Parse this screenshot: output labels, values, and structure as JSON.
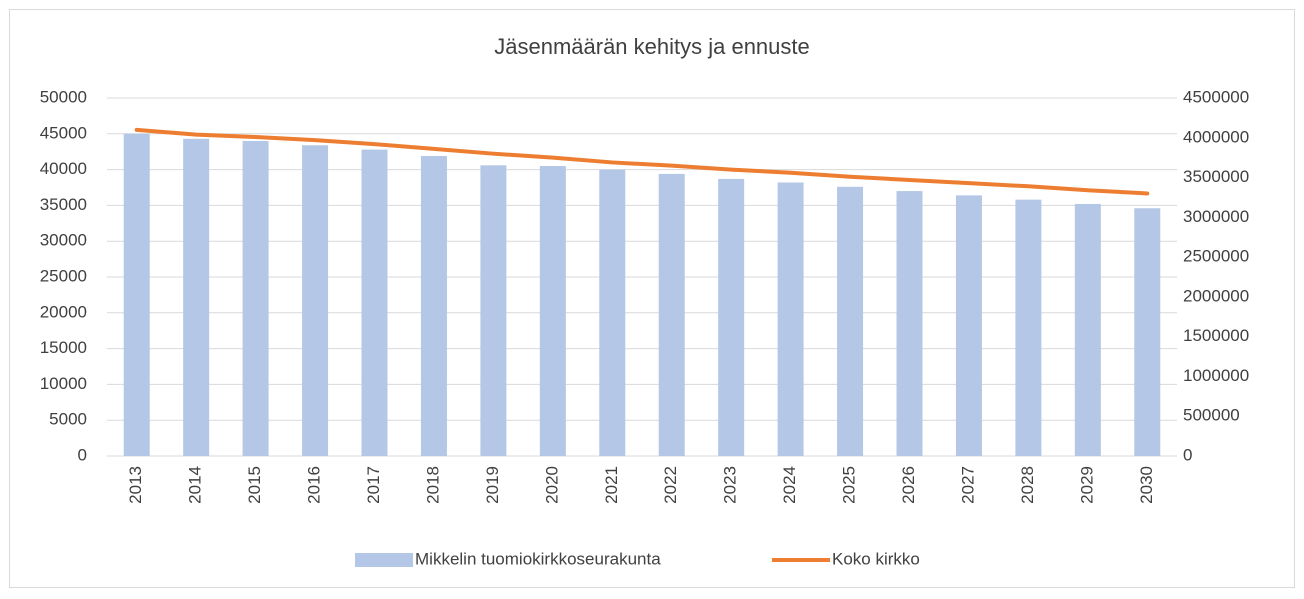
{
  "chart_data": {
    "type": "bar-line",
    "title": "Jäsenmäärän kehitys ja ennuste",
    "categories": [
      "2013",
      "2014",
      "2015",
      "2016",
      "2017",
      "2018",
      "2019",
      "2020",
      "2021",
      "2022",
      "2023",
      "2024",
      "2025",
      "2026",
      "2027",
      "2028",
      "2029",
      "2030"
    ],
    "series": [
      {
        "name": "Mikkelin tuomiokirkkoseurakunta",
        "type": "bar",
        "color": "#b4c7e7",
        "axis": "y",
        "values": [
          45000,
          44300,
          44000,
          43400,
          42800,
          41900,
          40600,
          40500,
          40000,
          39400,
          38700,
          38200,
          37600,
          37000,
          36400,
          35800,
          35200,
          34600
        ]
      },
      {
        "name": "Koko kirkko",
        "type": "line",
        "color": "#ed7d31",
        "axis": "y2",
        "values": [
          4100000,
          4040000,
          4010000,
          3970000,
          3920000,
          3860000,
          3800000,
          3750000,
          3690000,
          3650000,
          3600000,
          3560000,
          3510000,
          3470000,
          3430000,
          3390000,
          3340000,
          3300000
        ]
      }
    ],
    "ylim": [
      0,
      50000
    ],
    "yticks": [
      0,
      5000,
      10000,
      15000,
      20000,
      25000,
      30000,
      35000,
      40000,
      45000,
      50000
    ],
    "y2lim": [
      0,
      4500000
    ],
    "y2ticks": [
      0,
      500000,
      1000000,
      1500000,
      2000000,
      2500000,
      3000000,
      3500000,
      4000000,
      4500000
    ],
    "grid": true,
    "legend": "bottom"
  }
}
